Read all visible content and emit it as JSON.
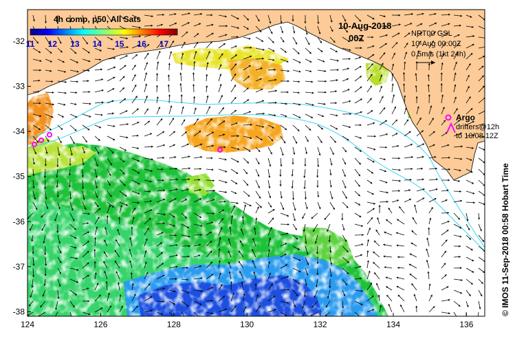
{
  "colorbar": {
    "title": "4h comp, p50, All Sats",
    "tick_labels": [
      "11",
      "12",
      "13",
      "14",
      "15",
      "16",
      "17"
    ],
    "range": [
      11,
      17.6
    ],
    "colormap": "jet",
    "label_color": "#0000cc"
  },
  "header": {
    "date": "10-Aug-2018",
    "time": "00Z"
  },
  "legend": {
    "line1": "NRT00 GSL",
    "line2": "10-Aug 00:00Z",
    "line3": "0.5m/s (1kt 24h)"
  },
  "argo": {
    "label": "Argo",
    "drifters_line1": "drifters@12h",
    "drifters_line2": "to 10/08 12Z",
    "marker_color": "#ff00ff"
  },
  "credit": "© IMOS 11-Sep-2018 00:58 Hobart Time",
  "axes": {
    "x_ticks": [
      "124",
      "126",
      "128",
      "130",
      "132",
      "134",
      "136"
    ],
    "y_ticks": [
      "-32",
      "-33",
      "-34",
      "-35",
      "-36",
      "-37",
      "-38"
    ],
    "xlim": [
      124,
      136.5
    ],
    "ylim": [
      -38.1,
      -31.3
    ]
  },
  "colors": {
    "land": "#fccb97",
    "contour": "#3ad6f0"
  }
}
